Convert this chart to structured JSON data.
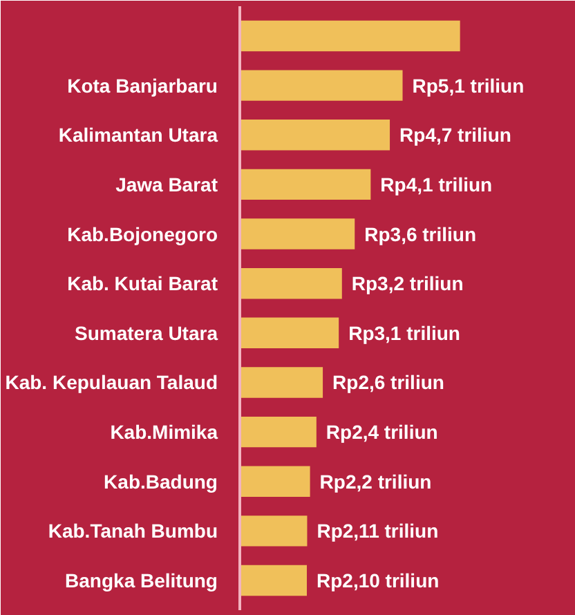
{
  "chart_data": {
    "type": "bar",
    "orientation": "horizontal",
    "categories": [
      null,
      "Kota Banjarbaru",
      "Kalimantan Utara",
      "Jawa Barat",
      "Kab.Bojonegoro",
      "Kab. Kutai Barat",
      "Sumatera Utara",
      "Kab. Kepulauan Talaud",
      "Kab.Mimika",
      "Kab.Badung",
      "Kab.Tanah Bumbu",
      "Bangka Belitung"
    ],
    "values": [
      6.9,
      5.1,
      4.7,
      4.1,
      3.6,
      3.2,
      3.1,
      2.6,
      2.4,
      2.2,
      2.11,
      2.1
    ],
    "value_labels": [
      null,
      "Rp5,1 triliun",
      "Rp4,7 triliun",
      "Rp4,1 triliun",
      "Rp3,6 triliun",
      "Rp3,2 triliun",
      "Rp3,1 triliun",
      "Rp2,6 triliun",
      "Rp2,4 triliun",
      "Rp2,2 triliun",
      "Rp2,11 triliun",
      "Rp2,10 triliun"
    ],
    "color": "#f0c05a",
    "tick_labels": "y"
  }
}
